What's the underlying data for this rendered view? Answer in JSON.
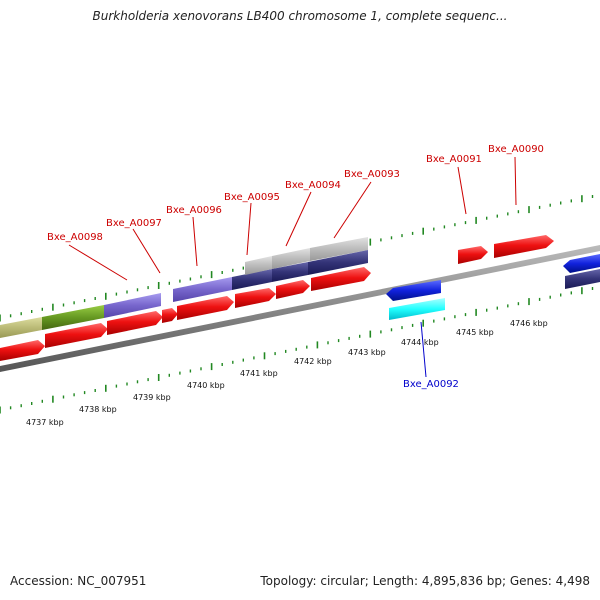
{
  "title": "Burkholderia xenovorans LB400 chromosome 1, complete sequenc...",
  "footer": {
    "accession": "Accession: NC_007951",
    "summary": "Topology: circular; Length: 4,895,836 bp; Genes: 4,498"
  },
  "scale": {
    "ticks": [
      "4737 kbp",
      "4738 kbp",
      "4739 kbp",
      "4740 kbp",
      "4741 kbp",
      "4742 kbp",
      "4743 kbp",
      "4744 kbp",
      "4745 kbp",
      "4746 kbp"
    ]
  },
  "genes": [
    {
      "label": "Bxe_A0098",
      "color": "#cc0000"
    },
    {
      "label": "Bxe_A0097",
      "color": "#cc0000"
    },
    {
      "label": "Bxe_A0096",
      "color": "#cc0000"
    },
    {
      "label": "Bxe_A0095",
      "color": "#cc0000"
    },
    {
      "label": "Bxe_A0094",
      "color": "#cc0000"
    },
    {
      "label": "Bxe_A0093",
      "color": "#cc0000"
    },
    {
      "label": "Bxe_A0091",
      "color": "#cc0000"
    },
    {
      "label": "Bxe_A0090",
      "color": "#cc0000"
    },
    {
      "label": "Bxe_A0092",
      "color": "#0000cc"
    }
  ],
  "colors": {
    "forward_cds": "#ee1111",
    "reverse_cds": "#1122dd",
    "backbone": "#888888",
    "tick_marks": "#228822",
    "feature_violet": "#7766cc",
    "feature_olive": "#669922",
    "feature_khaki": "#bbbb77",
    "feature_gray": "#bbbbbb",
    "feature_cyan": "#22ffff",
    "feature_navy": "#333377"
  }
}
